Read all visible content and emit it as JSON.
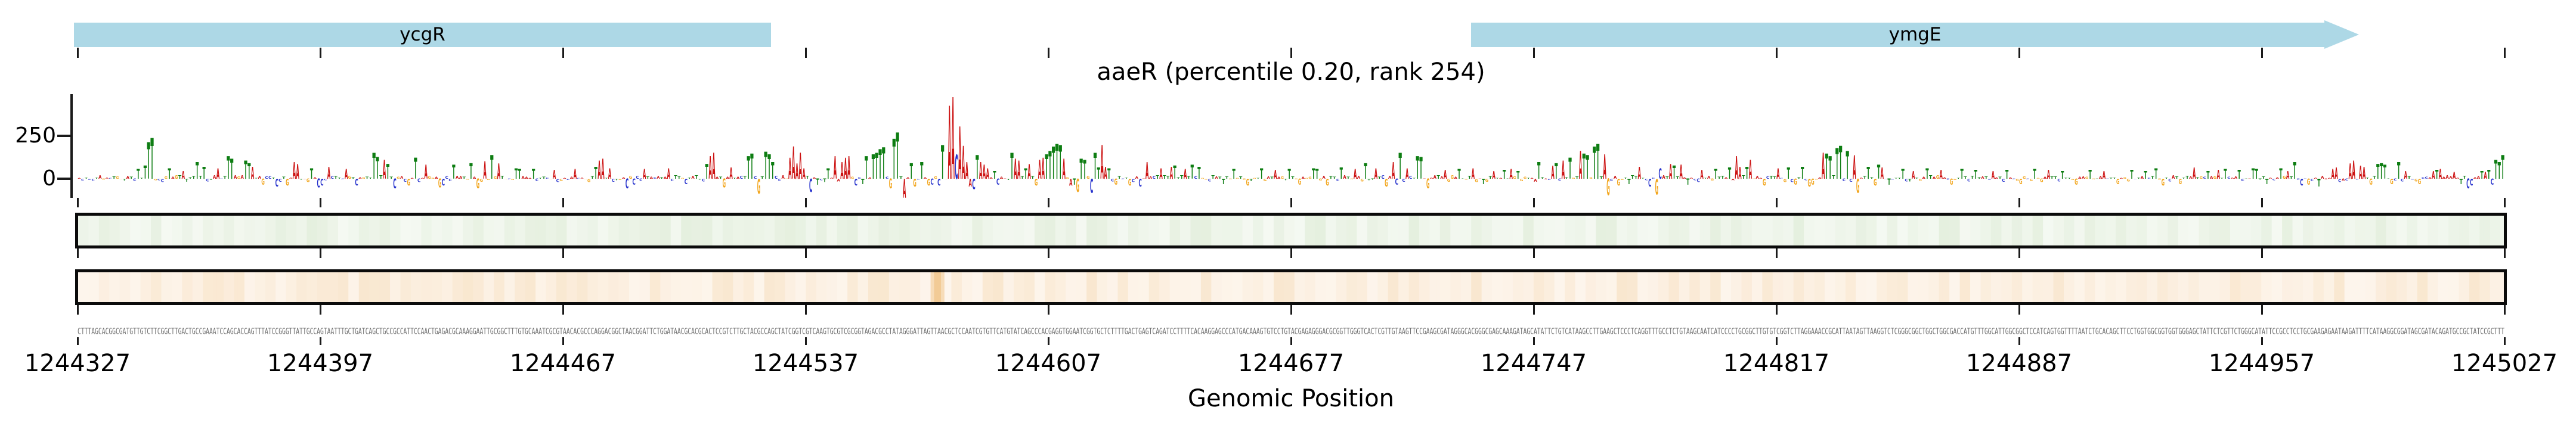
{
  "chart_data": {
    "type": "logo",
    "title": "aaeR (percentile 0.20, rank 254)",
    "xlabel": "Genomic Position",
    "x_start": 1244327,
    "x_end": 1245027,
    "length": 700,
    "x_ticks": [
      1244327,
      1244397,
      1244467,
      1244537,
      1244607,
      1244677,
      1244747,
      1244817,
      1244887,
      1244957,
      1245027
    ],
    "y_tick_labels": [
      "250",
      "0"
    ],
    "y_ticks": [
      250,
      0
    ],
    "ylim": [
      -130,
      490
    ],
    "grid": false,
    "base_colors": {
      "A": "#cc1111",
      "C": "#2430cc",
      "G": "#f2a51b",
      "T": "#0d7d12"
    },
    "gene_color": "#add8e6",
    "genes": [
      {
        "label": "ycgR",
        "start": 1244326,
        "end": 1244527,
        "arrow": false
      },
      {
        "label": "ymgE",
        "start": 1244729,
        "end": 1244985,
        "arrow": true
      }
    ],
    "peaks": [
      [
        17,
        "T",
        55
      ],
      [
        19,
        "T",
        75
      ],
      [
        20,
        "T",
        210
      ],
      [
        21,
        "T",
        235
      ],
      [
        26,
        "T",
        60
      ],
      [
        30,
        "A",
        45
      ],
      [
        34,
        "T",
        95
      ],
      [
        36,
        "T",
        70
      ],
      [
        40,
        "A",
        60
      ],
      [
        43,
        "T",
        130
      ],
      [
        44,
        "T",
        115
      ],
      [
        48,
        "T",
        105
      ],
      [
        49,
        "T",
        90
      ],
      [
        50,
        "A",
        70
      ],
      [
        53,
        "G",
        -35
      ],
      [
        57,
        "C",
        -45
      ],
      [
        60,
        "G",
        -40
      ],
      [
        62,
        "A",
        95
      ],
      [
        63,
        "A",
        85
      ],
      [
        67,
        "T",
        60
      ],
      [
        69,
        "C",
        -50
      ],
      [
        70,
        "C",
        -40
      ],
      [
        72,
        "A",
        70
      ],
      [
        77,
        "A",
        55
      ],
      [
        80,
        "C",
        -40
      ],
      [
        85,
        "T",
        150
      ],
      [
        86,
        "T",
        125
      ],
      [
        88,
        "A",
        110
      ],
      [
        89,
        "T",
        85
      ],
      [
        91,
        "C",
        -55
      ],
      [
        95,
        "G",
        -40
      ],
      [
        97,
        "T",
        120
      ],
      [
        100,
        "A",
        80
      ],
      [
        104,
        "G",
        -50
      ],
      [
        105,
        "C",
        -40
      ],
      [
        108,
        "T",
        80
      ],
      [
        113,
        "T",
        90
      ],
      [
        115,
        "G",
        -55
      ],
      [
        117,
        "A",
        100
      ],
      [
        119,
        "T",
        135
      ],
      [
        121,
        "A",
        90
      ],
      [
        126,
        "T",
        60
      ],
      [
        127,
        "T",
        55
      ],
      [
        131,
        "T",
        55
      ],
      [
        137,
        "A",
        50
      ],
      [
        143,
        "A",
        55
      ],
      [
        149,
        "T",
        70
      ],
      [
        150,
        "A",
        105
      ],
      [
        151,
        "A",
        115
      ],
      [
        153,
        "A",
        60
      ],
      [
        158,
        "C",
        -55
      ],
      [
        160,
        "C",
        -35
      ],
      [
        163,
        "A",
        55
      ],
      [
        170,
        "A",
        60
      ],
      [
        175,
        "C",
        -30
      ],
      [
        181,
        "T",
        85
      ],
      [
        182,
        "A",
        130
      ],
      [
        183,
        "A",
        150
      ],
      [
        186,
        "G",
        -50
      ],
      [
        188,
        "A",
        65
      ],
      [
        193,
        "T",
        130
      ],
      [
        194,
        "T",
        145
      ],
      [
        196,
        "G",
        -85
      ],
      [
        198,
        "T",
        155
      ],
      [
        199,
        "T",
        140
      ],
      [
        200,
        "T",
        95
      ],
      [
        205,
        "A",
        120
      ],
      [
        206,
        "A",
        185
      ],
      [
        207,
        "A",
        90
      ],
      [
        208,
        "A",
        150
      ],
      [
        209,
        "A",
        60
      ],
      [
        211,
        "C",
        -75
      ],
      [
        213,
        "T",
        -35
      ],
      [
        216,
        "T",
        60
      ],
      [
        218,
        "A",
        130
      ],
      [
        220,
        "A",
        95
      ],
      [
        221,
        "A",
        120
      ],
      [
        222,
        "A",
        130
      ],
      [
        224,
        "C",
        -40
      ],
      [
        226,
        "T",
        -30
      ],
      [
        227,
        "T",
        130
      ],
      [
        229,
        "T",
        140
      ],
      [
        230,
        "T",
        150
      ],
      [
        231,
        "T",
        170
      ],
      [
        232,
        "T",
        180
      ],
      [
        234,
        "G",
        -55
      ],
      [
        235,
        "T",
        230
      ],
      [
        236,
        "T",
        265
      ],
      [
        238,
        "A",
        -110
      ],
      [
        240,
        "T",
        90
      ],
      [
        241,
        "G",
        -45
      ],
      [
        243,
        "T",
        95
      ],
      [
        245,
        "G",
        -40
      ],
      [
        246,
        "C",
        -35
      ],
      [
        248,
        "C",
        -40
      ],
      [
        249,
        "T",
        195
      ],
      [
        251,
        "A",
        420
      ],
      [
        252,
        "A",
        470
      ],
      [
        253,
        "C",
        140
      ],
      [
        254,
        "A",
        300
      ],
      [
        255,
        "A",
        190
      ],
      [
        256,
        "A",
        95
      ],
      [
        257,
        "A",
        -45
      ],
      [
        258,
        "C",
        -60
      ],
      [
        259,
        "T",
        135
      ],
      [
        260,
        "A",
        95
      ],
      [
        261,
        "A",
        80
      ],
      [
        262,
        "A",
        60
      ],
      [
        264,
        "T",
        45
      ],
      [
        265,
        "C",
        -35
      ],
      [
        269,
        "T",
        150
      ],
      [
        270,
        "A",
        115
      ],
      [
        271,
        "A",
        105
      ],
      [
        273,
        "T",
        60
      ],
      [
        274,
        "A",
        85
      ],
      [
        276,
        "G",
        -40
      ],
      [
        277,
        "A",
        110
      ],
      [
        278,
        "A",
        120
      ],
      [
        279,
        "T",
        140
      ],
      [
        280,
        "T",
        160
      ],
      [
        281,
        "T",
        185
      ],
      [
        282,
        "T",
        200
      ],
      [
        283,
        "T",
        195
      ],
      [
        284,
        "A",
        115
      ],
      [
        286,
        "A",
        -40
      ],
      [
        287,
        "T",
        -35
      ],
      [
        288,
        "G",
        -75
      ],
      [
        289,
        "T",
        115
      ],
      [
        290,
        "T",
        110
      ],
      [
        292,
        "C",
        -80
      ],
      [
        293,
        "T",
        150
      ],
      [
        294,
        "T",
        65
      ],
      [
        295,
        "A",
        195
      ],
      [
        296,
        "A",
        70
      ],
      [
        297,
        "T",
        60
      ],
      [
        299,
        "G",
        -35
      ],
      [
        303,
        "G",
        -40
      ],
      [
        306,
        "C",
        -45
      ],
      [
        308,
        "A",
        95
      ],
      [
        312,
        "A",
        60
      ],
      [
        315,
        "A",
        70
      ],
      [
        316,
        "T",
        75
      ],
      [
        319,
        "A",
        55
      ],
      [
        321,
        "T",
        80
      ],
      [
        323,
        "T",
        70
      ],
      [
        330,
        "T",
        -30
      ],
      [
        333,
        "T",
        55
      ],
      [
        337,
        "G",
        -40
      ],
      [
        341,
        "T",
        60
      ],
      [
        345,
        "A",
        50
      ],
      [
        349,
        "T",
        55
      ],
      [
        352,
        "G",
        -35
      ],
      [
        356,
        "T",
        60
      ],
      [
        357,
        "T",
        55
      ],
      [
        360,
        "G",
        -40
      ],
      [
        364,
        "T",
        65
      ],
      [
        368,
        "A",
        55
      ],
      [
        371,
        "T",
        90
      ],
      [
        374,
        "A",
        60
      ],
      [
        377,
        "G",
        -45
      ],
      [
        379,
        "A",
        95
      ],
      [
        380,
        "C",
        -35
      ],
      [
        381,
        "T",
        150
      ],
      [
        383,
        "A",
        60
      ],
      [
        386,
        "T",
        130
      ],
      [
        387,
        "T",
        125
      ],
      [
        389,
        "G",
        -55
      ],
      [
        394,
        "A",
        50
      ],
      [
        398,
        "T",
        55
      ],
      [
        402,
        "A",
        60
      ],
      [
        405,
        "T",
        -30
      ],
      [
        408,
        "A",
        45
      ],
      [
        411,
        "T",
        50
      ],
      [
        413,
        "A",
        55
      ],
      [
        415,
        "T",
        45
      ],
      [
        421,
        "T",
        95
      ],
      [
        425,
        "A",
        75
      ],
      [
        426,
        "T",
        90
      ],
      [
        428,
        "A",
        105
      ],
      [
        430,
        "T",
        120
      ],
      [
        433,
        "A",
        160
      ],
      [
        434,
        "T",
        145
      ],
      [
        435,
        "T",
        135
      ],
      [
        437,
        "T",
        185
      ],
      [
        438,
        "T",
        200
      ],
      [
        440,
        "A",
        140
      ],
      [
        441,
        "G",
        -95
      ],
      [
        444,
        "G",
        -40
      ],
      [
        447,
        "T",
        -30
      ],
      [
        450,
        "A",
        70
      ],
      [
        453,
        "C",
        -45
      ],
      [
        455,
        "G",
        -90
      ],
      [
        456,
        "C",
        60
      ],
      [
        459,
        "A",
        85
      ],
      [
        460,
        "T",
        75
      ],
      [
        462,
        "A",
        80
      ],
      [
        464,
        "T",
        -35
      ],
      [
        468,
        "A",
        50
      ],
      [
        472,
        "T",
        55
      ],
      [
        476,
        "T",
        65
      ],
      [
        478,
        "A",
        130
      ],
      [
        479,
        "A",
        70
      ],
      [
        481,
        "T",
        70
      ],
      [
        482,
        "A",
        110
      ],
      [
        486,
        "G",
        -40
      ],
      [
        490,
        "A",
        60
      ],
      [
        493,
        "T",
        65
      ],
      [
        495,
        "G",
        -35
      ],
      [
        497,
        "T",
        70
      ],
      [
        499,
        "G",
        -45
      ],
      [
        500,
        "G",
        -35
      ],
      [
        503,
        "A",
        150
      ],
      [
        504,
        "T",
        145
      ],
      [
        505,
        "T",
        130
      ],
      [
        507,
        "T",
        175
      ],
      [
        508,
        "T",
        190
      ],
      [
        510,
        "T",
        160
      ],
      [
        512,
        "A",
        135
      ],
      [
        513,
        "G",
        -80
      ],
      [
        516,
        "T",
        70
      ],
      [
        518,
        "G",
        -40
      ],
      [
        519,
        "T",
        80
      ],
      [
        520,
        "A",
        65
      ],
      [
        522,
        "T",
        -35
      ],
      [
        526,
        "T",
        55
      ],
      [
        529,
        "A",
        45
      ],
      [
        533,
        "T",
        60
      ],
      [
        537,
        "A",
        50
      ],
      [
        540,
        "G",
        -35
      ],
      [
        543,
        "T",
        55
      ],
      [
        547,
        "T",
        50
      ],
      [
        552,
        "A",
        45
      ],
      [
        556,
        "T",
        50
      ],
      [
        560,
        "G",
        -30
      ],
      [
        564,
        "T",
        55
      ],
      [
        568,
        "A",
        50
      ],
      [
        572,
        "T",
        45
      ],
      [
        576,
        "G",
        -35
      ],
      [
        580,
        "T",
        50
      ],
      [
        584,
        "A",
        45
      ],
      [
        588,
        "G",
        -30
      ],
      [
        592,
        "T",
        50
      ],
      [
        596,
        "T",
        45
      ],
      [
        599,
        "T",
        60
      ],
      [
        601,
        "G",
        -40
      ],
      [
        606,
        "G",
        -30
      ],
      [
        610,
        "A",
        65
      ],
      [
        614,
        "T",
        45
      ],
      [
        617,
        "A",
        50
      ],
      [
        619,
        "T",
        55
      ],
      [
        623,
        "T",
        50
      ],
      [
        627,
        "T",
        60
      ],
      [
        628,
        "T",
        55
      ],
      [
        631,
        "T",
        -30
      ],
      [
        635,
        "T",
        60
      ],
      [
        637,
        "A",
        45
      ],
      [
        639,
        "T",
        95
      ],
      [
        641,
        "C",
        -40
      ],
      [
        643,
        "G",
        -35
      ],
      [
        646,
        "T",
        -45
      ],
      [
        650,
        "A",
        55
      ],
      [
        651,
        "A",
        65
      ],
      [
        655,
        "A",
        90
      ],
      [
        656,
        "A",
        105
      ],
      [
        658,
        "A",
        75
      ],
      [
        659,
        "A",
        70
      ],
      [
        661,
        "G",
        -35
      ],
      [
        663,
        "T",
        85
      ],
      [
        664,
        "T",
        90
      ],
      [
        665,
        "T",
        80
      ],
      [
        667,
        "G",
        -30
      ],
      [
        669,
        "T",
        95
      ],
      [
        671,
        "A",
        45
      ],
      [
        675,
        "G",
        -30
      ],
      [
        679,
        "A",
        45
      ],
      [
        680,
        "T",
        50
      ],
      [
        681,
        "A",
        55
      ],
      [
        685,
        "A",
        40
      ],
      [
        687,
        "T",
        -30
      ],
      [
        689,
        "C",
        -55
      ],
      [
        690,
        "C",
        -40
      ],
      [
        693,
        "T",
        45
      ],
      [
        694,
        "A",
        40
      ],
      [
        695,
        "T",
        50
      ],
      [
        696,
        "C",
        -35
      ],
      [
        697,
        "T",
        110
      ],
      [
        698,
        "T",
        95
      ],
      [
        699,
        "T",
        135
      ]
    ],
    "noise": {
      "seed": 7,
      "max_abs": 20,
      "neg_prob_cg": 0.6,
      "neg_prob_at": 0.12
    },
    "tracks": [
      {
        "name": "importance-track-green",
        "fill": "#eef5ea",
        "shade": "#dcead3",
        "jitter": 0.5,
        "highlights": []
      },
      {
        "name": "importance-track-orange",
        "fill": "#fcf0e2",
        "shade": "#f5dcb8",
        "jitter": 0.45,
        "highlights": [
          {
            "start": 246,
            "end": 249,
            "color": "#f2cb96"
          }
        ]
      }
    ],
    "sequence": {
      "prefix": "CTTTAGCACGGCGATGTTGTCTTCGGCTTGACTGCCGAAATCCAGCACCAGTTTATCCGGGTTATTGCCAGTAATTTGCTGATCAGCTGCCGCCATTCCAACTGAGACGCAAAGGAATTGCGGCTTTGTGCAAATCGCGTAACACGCCCAGGACGGCTAACGGATT",
      "suffix": "GGCGGCTGGCTGGCGACCATGTTTGGCATTGGCGGCTCCATCAGTGGTTTTAATCTGCACAGCTTCCTGGTGGCGGTGGTGGGAGCTATTCTCGTTCTGGGCATATTCCGCCTCCTGCGAAGAGAATAAGATTTTCATAAGGCGGATAGCGATACAGATGCCGCTATCCGCTTT",
      "color": "#6b6b6b"
    }
  }
}
